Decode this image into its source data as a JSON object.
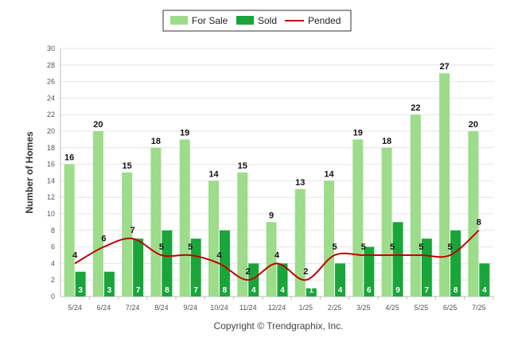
{
  "colors": {
    "for_sale": "#9ddc8a",
    "sold": "#1aa53a",
    "pended": "#c00000"
  },
  "chart_data": {
    "type": "bar",
    "ylabel": "Number of Homes",
    "xlabel": "",
    "ylim": [
      0,
      30
    ],
    "yticks": [
      "0",
      "2",
      "4",
      "6",
      "8",
      "10",
      "12",
      "14",
      "16",
      "18",
      "20",
      "22",
      "24",
      "26",
      "28",
      "30"
    ],
    "categories": [
      "5/24",
      "6/24",
      "7/24",
      "8/24",
      "9/24",
      "10/24",
      "11/24",
      "12/24",
      "1/25",
      "2/25",
      "3/25",
      "4/25",
      "5/25",
      "6/25",
      "7/25"
    ],
    "series": [
      {
        "name": "For Sale",
        "type": "bar",
        "values": [
          16,
          20,
          15,
          18,
          19,
          14,
          15,
          9,
          13,
          14,
          19,
          18,
          22,
          27,
          20
        ]
      },
      {
        "name": "Sold",
        "type": "bar",
        "values": [
          3,
          3,
          7,
          8,
          7,
          8,
          4,
          4,
          1,
          4,
          6,
          9,
          7,
          8,
          4
        ]
      },
      {
        "name": "Pended",
        "type": "line",
        "values": [
          4,
          6,
          7,
          5,
          5,
          4,
          2,
          4,
          2,
          5,
          5,
          5,
          5,
          5,
          8
        ]
      }
    ],
    "legend_position": "top-center",
    "grid": true
  },
  "footer": "Copyright © Trendgraphix, Inc."
}
